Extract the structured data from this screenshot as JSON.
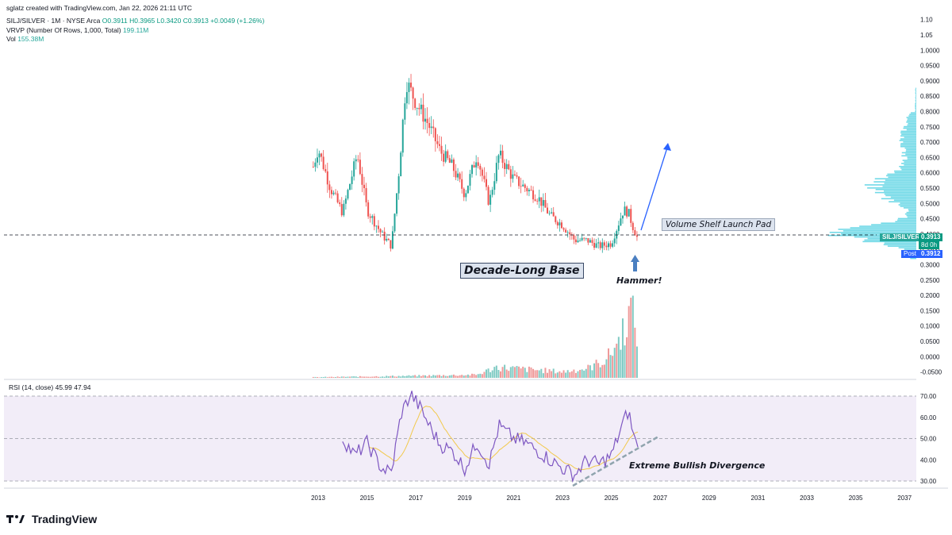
{
  "header": {
    "credit": "sglatz created with TradingView.com, Jan 22, 2026 21:11 UTC",
    "symbol": "SILJ/SILVER · 1M · NYSE Arca",
    "ohlc": "O0.3911  H0.3965  L0.3420  C0.3913  +0.0049 (+1.26%)",
    "vrvp_label": "VRVP (Number Of Rows, 1,000, Total)",
    "vrvp_value": "199.11M",
    "vol_label": "Vol",
    "vol_value": "155.38M"
  },
  "rsi_header": {
    "label": "RSI (14, close)",
    "rsi_value": "45.99",
    "ma_value": "47.94"
  },
  "annotations": {
    "shelf": "Volume Shelf Launch Pad",
    "base": "Decade-Long Base",
    "hammer": "Hammer!",
    "divergence": "Extreme Bullish Divergence"
  },
  "price_tags": {
    "symbol": "SILJ/SILVER",
    "price": "0.3913",
    "countdown": "8d 0h",
    "post_label": "Post",
    "post_price": "0.3912"
  },
  "footer": {
    "brand": "TradingView"
  },
  "colors": {
    "up": "#26a69a",
    "down": "#ef5350",
    "rsi": "#7e57c2",
    "rsi_ma": "#f2c94c",
    "vp": "#4dd0e1",
    "arrow": "#2962ff"
  },
  "chart_data": [
    {
      "type": "candlestick",
      "symbol": "SILJ/SILVER",
      "interval": "1M",
      "y_tick_labels": [
        "1.10",
        "1.05",
        "1.0000",
        "0.9500",
        "0.9000",
        "0.8500",
        "0.8000",
        "0.7500",
        "0.7000",
        "0.6500",
        "0.6000",
        "0.5500",
        "0.5000",
        "0.4500",
        "0.4000",
        "0.3500",
        "0.3000",
        "0.2500",
        "0.2000",
        "0.1500",
        "0.1000",
        "0.0500",
        "0.0000",
        "-0.0500"
      ],
      "x_tick_labels": [
        "2013",
        "2015",
        "2017",
        "2019",
        "2021",
        "2023",
        "2025",
        "2027",
        "2029",
        "2031",
        "2033",
        "2035",
        "2037"
      ],
      "ylim": [
        -0.06,
        1.11
      ],
      "last_price": 0.3913,
      "price_anchors": [
        {
          "t": 2012.8,
          "p": 0.62
        },
        {
          "t": 2013.0,
          "p": 0.68
        },
        {
          "t": 2013.5,
          "p": 0.55
        },
        {
          "t": 2014.0,
          "p": 0.47
        },
        {
          "t": 2014.6,
          "p": 0.66
        },
        {
          "t": 2015.0,
          "p": 0.48
        },
        {
          "t": 2015.6,
          "p": 0.4
        },
        {
          "t": 2016.0,
          "p": 0.36
        },
        {
          "t": 2016.3,
          "p": 0.6
        },
        {
          "t": 2016.6,
          "p": 0.9
        },
        {
          "t": 2017.0,
          "p": 0.83
        },
        {
          "t": 2017.5,
          "p": 0.76
        },
        {
          "t": 2018.0,
          "p": 0.67
        },
        {
          "t": 2018.5,
          "p": 0.62
        },
        {
          "t": 2019.0,
          "p": 0.53
        },
        {
          "t": 2019.5,
          "p": 0.66
        },
        {
          "t": 2020.0,
          "p": 0.5
        },
        {
          "t": 2020.4,
          "p": 0.66
        },
        {
          "t": 2021.0,
          "p": 0.58
        },
        {
          "t": 2021.5,
          "p": 0.55
        },
        {
          "t": 2022.0,
          "p": 0.52
        },
        {
          "t": 2022.5,
          "p": 0.46
        },
        {
          "t": 2023.0,
          "p": 0.43
        },
        {
          "t": 2023.5,
          "p": 0.38
        },
        {
          "t": 2024.0,
          "p": 0.38
        },
        {
          "t": 2024.5,
          "p": 0.36
        },
        {
          "t": 2025.0,
          "p": 0.37
        },
        {
          "t": 2025.5,
          "p": 0.48
        },
        {
          "t": 2025.7,
          "p": 0.47
        },
        {
          "t": 2025.9,
          "p": 0.42
        },
        {
          "t": 2026.05,
          "p": 0.3913
        }
      ]
    },
    {
      "type": "bar",
      "name": "Volume",
      "anchors": [
        {
          "t": 2012.8,
          "v": 0.002
        },
        {
          "t": 2016.5,
          "v": 0.006
        },
        {
          "t": 2019.5,
          "v": 0.01
        },
        {
          "t": 2020.3,
          "v": 0.035
        },
        {
          "t": 2021.5,
          "v": 0.028
        },
        {
          "t": 2023.0,
          "v": 0.02
        },
        {
          "t": 2024.0,
          "v": 0.03
        },
        {
          "t": 2024.8,
          "v": 0.06
        },
        {
          "t": 2025.3,
          "v": 0.12
        },
        {
          "t": 2025.8,
          "v": 0.22
        },
        {
          "t": 2026.05,
          "v": 0.15
        }
      ]
    },
    {
      "type": "line",
      "name": "RSI (14, close)",
      "y_tick_labels": [
        "70.00",
        "60.00",
        "50.00",
        "40.00",
        "30.00"
      ],
      "ylim": [
        28,
        73
      ],
      "anchors": [
        {
          "t": 2014.0,
          "v": 50
        },
        {
          "t": 2014.5,
          "v": 42
        },
        {
          "t": 2015.0,
          "v": 48
        },
        {
          "t": 2015.6,
          "v": 36
        },
        {
          "t": 2016.0,
          "v": 34
        },
        {
          "t": 2016.4,
          "v": 62
        },
        {
          "t": 2016.8,
          "v": 71
        },
        {
          "t": 2017.2,
          "v": 64
        },
        {
          "t": 2017.6,
          "v": 55
        },
        {
          "t": 2018.0,
          "v": 47
        },
        {
          "t": 2018.5,
          "v": 44
        },
        {
          "t": 2019.0,
          "v": 36
        },
        {
          "t": 2019.5,
          "v": 48
        },
        {
          "t": 2020.0,
          "v": 38
        },
        {
          "t": 2020.4,
          "v": 56
        },
        {
          "t": 2021.0,
          "v": 50
        },
        {
          "t": 2021.5,
          "v": 48
        },
        {
          "t": 2022.0,
          "v": 44
        },
        {
          "t": 2022.5,
          "v": 40
        },
        {
          "t": 2023.0,
          "v": 36
        },
        {
          "t": 2023.5,
          "v": 33
        },
        {
          "t": 2024.0,
          "v": 40
        },
        {
          "t": 2024.5,
          "v": 38
        },
        {
          "t": 2025.0,
          "v": 42
        },
        {
          "t": 2025.5,
          "v": 58
        },
        {
          "t": 2025.7,
          "v": 63
        },
        {
          "t": 2025.9,
          "v": 52
        },
        {
          "t": 2026.05,
          "v": 45.99
        }
      ]
    }
  ]
}
